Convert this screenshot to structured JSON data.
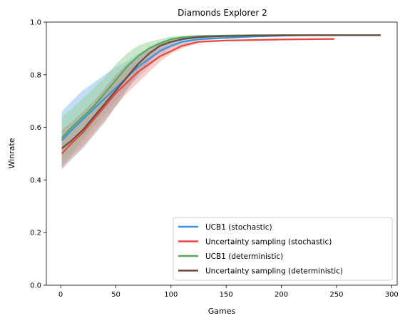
{
  "chart_data": {
    "type": "line",
    "title": "Diamonds Explorer 2",
    "xlabel": "Games",
    "ylabel": "Winrate",
    "xlim": [
      -13,
      305
    ],
    "ylim": [
      0,
      1.0
    ],
    "xticks": [
      0,
      50,
      100,
      150,
      200,
      250,
      300
    ],
    "yticks": [
      0.0,
      0.2,
      0.4,
      0.6,
      0.8,
      1.0
    ],
    "grid": false,
    "legend_position": "lower-right",
    "series": [
      {
        "name": "UCB1 (stochastic)",
        "color": "#3a93dd",
        "band_color": "#8ec2ee",
        "x": [
          1,
          10,
          20,
          30,
          40,
          50,
          60,
          70,
          80,
          90,
          100,
          110,
          125,
          150,
          175,
          200,
          225,
          250,
          275,
          290
        ],
        "y": [
          0.55,
          0.59,
          0.63,
          0.67,
          0.71,
          0.75,
          0.79,
          0.83,
          0.86,
          0.89,
          0.91,
          0.925,
          0.935,
          0.94,
          0.945,
          0.948,
          0.95,
          0.95,
          0.95,
          0.95
        ],
        "lower": [
          0.45,
          0.5,
          0.55,
          0.6,
          0.65,
          0.7,
          0.75,
          0.79,
          0.83,
          0.87,
          0.9,
          0.915,
          0.93,
          0.937,
          0.943,
          0.946,
          0.948,
          0.949,
          0.949,
          0.949
        ],
        "upper": [
          0.66,
          0.7,
          0.74,
          0.77,
          0.8,
          0.83,
          0.85,
          0.88,
          0.9,
          0.92,
          0.93,
          0.94,
          0.945,
          0.947,
          0.949,
          0.95,
          0.951,
          0.951,
          0.951,
          0.951
        ]
      },
      {
        "name": "Uncertainty sampling (stochastic)",
        "color": "#e8453c",
        "band_color": "#f4a4a0",
        "x": [
          1,
          10,
          20,
          30,
          40,
          50,
          60,
          70,
          80,
          90,
          100,
          110,
          125,
          150,
          175,
          200,
          225,
          248
        ],
        "y": [
          0.5,
          0.54,
          0.58,
          0.63,
          0.68,
          0.73,
          0.77,
          0.81,
          0.84,
          0.87,
          0.89,
          0.91,
          0.925,
          0.93,
          0.932,
          0.934,
          0.935,
          0.936
        ],
        "lower": [
          0.45,
          0.49,
          0.53,
          0.58,
          0.63,
          0.68,
          0.73,
          0.77,
          0.81,
          0.85,
          0.88,
          0.9,
          0.92,
          0.928,
          0.931,
          0.933,
          0.934,
          0.935
        ],
        "upper": [
          0.55,
          0.59,
          0.63,
          0.68,
          0.73,
          0.78,
          0.82,
          0.85,
          0.88,
          0.9,
          0.91,
          0.92,
          0.93,
          0.933,
          0.934,
          0.936,
          0.937,
          0.938
        ]
      },
      {
        "name": "UCB1 (deterministic)",
        "color": "#55a85a",
        "band_color": "#9fd39f",
        "x": [
          1,
          10,
          20,
          30,
          40,
          50,
          60,
          70,
          80,
          90,
          100,
          110,
          125,
          150,
          175,
          200,
          225,
          250,
          275,
          290
        ],
        "y": [
          0.56,
          0.6,
          0.64,
          0.68,
          0.73,
          0.78,
          0.83,
          0.87,
          0.9,
          0.92,
          0.935,
          0.942,
          0.947,
          0.949,
          0.95,
          0.95,
          0.95,
          0.95,
          0.95,
          0.95
        ],
        "lower": [
          0.47,
          0.51,
          0.56,
          0.61,
          0.67,
          0.73,
          0.79,
          0.84,
          0.88,
          0.91,
          0.925,
          0.937,
          0.944,
          0.948,
          0.949,
          0.949,
          0.949,
          0.949,
          0.949,
          0.949
        ],
        "upper": [
          0.64,
          0.67,
          0.71,
          0.75,
          0.79,
          0.84,
          0.88,
          0.91,
          0.925,
          0.935,
          0.945,
          0.948,
          0.95,
          0.951,
          0.951,
          0.951,
          0.951,
          0.951,
          0.951,
          0.951
        ]
      },
      {
        "name": "Uncertainty sampling (deterministic)",
        "color": "#6b4a3e",
        "band_color": "#b39f97",
        "x": [
          1,
          10,
          20,
          30,
          40,
          50,
          60,
          70,
          80,
          90,
          100,
          110,
          125,
          150,
          175,
          200,
          225,
          250,
          275,
          290
        ],
        "y": [
          0.52,
          0.55,
          0.59,
          0.64,
          0.69,
          0.74,
          0.79,
          0.84,
          0.88,
          0.91,
          0.925,
          0.935,
          0.943,
          0.947,
          0.949,
          0.95,
          0.95,
          0.95,
          0.95,
          0.95
        ],
        "lower": [
          0.44,
          0.48,
          0.52,
          0.57,
          0.62,
          0.68,
          0.74,
          0.8,
          0.85,
          0.89,
          0.915,
          0.93,
          0.94,
          0.945,
          0.948,
          0.949,
          0.949,
          0.949,
          0.949,
          0.949
        ],
        "upper": [
          0.59,
          0.62,
          0.66,
          0.7,
          0.75,
          0.8,
          0.84,
          0.87,
          0.9,
          0.92,
          0.935,
          0.942,
          0.947,
          0.95,
          0.951,
          0.951,
          0.951,
          0.951,
          0.951,
          0.951
        ]
      }
    ]
  }
}
